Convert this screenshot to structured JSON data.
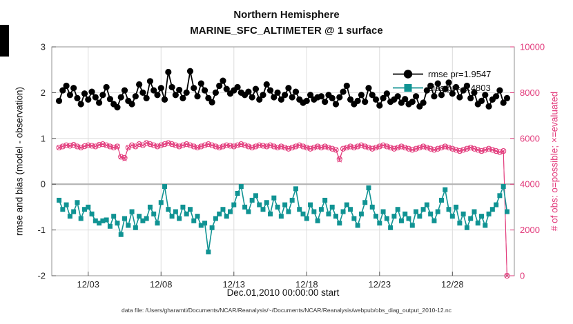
{
  "footer": {
    "data_file_note": "data file: /Users/gharamti/Documents/NCAR/Reanalysis/~/Documents/NCAR/Reanalysis/webpub/obs_diag_output_2010-12.nc"
  },
  "chart_data": {
    "type": "line",
    "title": "Northern Hemisphere",
    "subtitle": "MARINE_SFC_ALTIMETER @ 1 surface",
    "xlabel": "Dec.01,2010 00:00:00 start",
    "ylabel_left": "rmse and bias (model - observation)",
    "ylabel_right": "# of obs: o=possible; ×=evaluated",
    "xlim": [
      0.5,
      32.25
    ],
    "ylim_left": [
      -2,
      3
    ],
    "ylim_right": [
      0,
      10000
    ],
    "grid": true,
    "zero_line": 0,
    "x_tick_values": [
      3,
      8,
      13,
      18,
      23,
      28
    ],
    "x_tick_labels": [
      "12/03",
      "12/08",
      "12/13",
      "12/18",
      "12/23",
      "12/28"
    ],
    "y_ticks_left": [
      -2,
      -1,
      0,
      1,
      2,
      3
    ],
    "y_ticks_right": [
      0,
      2000,
      4000,
      6000,
      8000,
      10000
    ],
    "legend": {
      "position": "top-right",
      "entries": [
        {
          "label": "rmse pr=1.9547",
          "marker": "circle"
        },
        {
          "label": "bias pr=-0.4803",
          "marker": "square"
        }
      ]
    },
    "x": {
      "start": 1,
      "step": 0.25,
      "count": 124,
      "unit": "day of Dec 2010"
    },
    "series": [
      {
        "name": "rmse",
        "axis": "left",
        "color": "#000000",
        "marker": "circle-filled",
        "values": [
          1.82,
          2.05,
          2.15,
          1.95,
          2.1,
          1.88,
          1.75,
          1.98,
          1.85,
          2.02,
          1.9,
          1.78,
          1.95,
          2.12,
          1.86,
          1.75,
          1.68,
          1.9,
          2.05,
          1.82,
          1.75,
          1.92,
          2.18,
          2.0,
          1.88,
          2.25,
          2.05,
          1.95,
          2.1,
          1.85,
          2.45,
          2.12,
          1.95,
          2.06,
          1.88,
          2.0,
          2.47,
          2.1,
          1.92,
          2.2,
          2.05,
          1.88,
          1.79,
          2.0,
          2.15,
          2.26,
          2.08,
          1.98,
          2.05,
          2.12,
          2.0,
          1.95,
          2.02,
          1.9,
          2.08,
          1.85,
          1.95,
          2.18,
          2.05,
          1.9,
          2.0,
          1.85,
          1.95,
          2.1,
          1.9,
          2.02,
          1.85,
          1.78,
          1.82,
          1.95,
          1.85,
          1.9,
          1.92,
          1.8,
          1.95,
          1.88,
          1.75,
          1.9,
          2.02,
          2.15,
          1.85,
          1.75,
          1.82,
          1.95,
          1.8,
          2.1,
          1.95,
          1.85,
          1.72,
          1.88,
          1.98,
          1.8,
          1.85,
          1.92,
          1.78,
          1.86,
          1.75,
          1.8,
          1.92,
          1.7,
          1.78,
          2.05,
          2.15,
          1.92,
          2.2,
          1.95,
          2.08,
          2.22,
          1.98,
          2.12,
          1.9,
          2.05,
          2.15,
          1.88,
          2.0,
          1.75,
          1.82,
          1.95,
          1.7,
          1.85,
          1.92,
          2.05,
          1.78,
          1.88
        ]
      },
      {
        "name": "bias",
        "axis": "left",
        "color": "#109393",
        "marker": "square-filled",
        "values": [
          -0.35,
          -0.55,
          -0.45,
          -0.7,
          -0.6,
          -0.4,
          -0.75,
          -0.55,
          -0.5,
          -0.65,
          -0.8,
          -0.85,
          -0.8,
          -0.78,
          -0.92,
          -0.7,
          -0.85,
          -1.1,
          -0.75,
          -0.9,
          -0.6,
          -0.95,
          -0.7,
          -0.8,
          -0.75,
          -0.5,
          -0.65,
          -0.85,
          -0.4,
          -0.05,
          -0.55,
          -0.7,
          -0.6,
          -0.75,
          -0.5,
          -0.65,
          -0.55,
          -0.8,
          -0.7,
          -0.9,
          -0.85,
          -1.48,
          -0.95,
          -0.75,
          -0.65,
          -0.55,
          -0.7,
          -0.6,
          -0.45,
          -0.2,
          -0.05,
          -0.5,
          -0.6,
          -0.35,
          -0.25,
          -0.45,
          -0.55,
          -0.4,
          -0.65,
          -0.3,
          -0.5,
          -0.7,
          -0.45,
          -0.6,
          -0.35,
          -0.1,
          -0.55,
          -0.65,
          -0.75,
          -0.45,
          -0.6,
          -0.8,
          -0.55,
          -0.35,
          -0.65,
          -0.5,
          -0.7,
          -0.85,
          -0.6,
          -0.45,
          -0.55,
          -0.75,
          -0.9,
          -0.65,
          -0.4,
          -0.08,
          -0.5,
          -0.7,
          -0.85,
          -0.6,
          -0.75,
          -0.95,
          -0.7,
          -0.55,
          -0.8,
          -0.65,
          -0.75,
          -0.9,
          -0.6,
          -0.7,
          -0.55,
          -0.45,
          -0.65,
          -0.8,
          -0.6,
          -0.35,
          -0.12,
          -0.55,
          -0.7,
          -0.5,
          -0.85,
          -0.65,
          -0.95,
          -0.75,
          -0.6,
          -0.85,
          -0.7,
          -0.9,
          -0.65,
          -0.55,
          -0.45,
          -0.25,
          -0.05,
          -0.6
        ]
      },
      {
        "name": "obs_possible",
        "axis": "right",
        "color": "#e23a7b",
        "marker": "circle-open",
        "values": [
          5600,
          5650,
          5700,
          5680,
          5720,
          5650,
          5600,
          5660,
          5700,
          5680,
          5650,
          5720,
          5750,
          5700,
          5650,
          5600,
          5650,
          5200,
          5150,
          5600,
          5700,
          5650,
          5750,
          5700,
          5800,
          5750,
          5700,
          5650,
          5700,
          5750,
          5800,
          5750,
          5700,
          5650,
          5700,
          5750,
          5700,
          5650,
          5600,
          5650,
          5700,
          5750,
          5700,
          5650,
          5600,
          5650,
          5700,
          5680,
          5650,
          5700,
          5750,
          5700,
          5650,
          5600,
          5650,
          5700,
          5680,
          5650,
          5700,
          5650,
          5600,
          5650,
          5600,
          5550,
          5600,
          5650,
          5700,
          5650,
          5600,
          5550,
          5600,
          5650,
          5600,
          5650,
          5600,
          5550,
          5500,
          5100,
          5550,
          5600,
          5650,
          5600,
          5650,
          5700,
          5650,
          5600,
          5550,
          5600,
          5650,
          5700,
          5650,
          5600,
          5550,
          5600,
          5650,
          5600,
          5550,
          5500,
          5550,
          5600,
          5650,
          5600,
          5550,
          5500,
          5550,
          5600,
          5650,
          5600,
          5550,
          5500,
          5450,
          5500,
          5550,
          5600,
          5550,
          5500,
          5450,
          5500,
          5550,
          5500,
          5450,
          5400,
          5450,
          0
        ]
      },
      {
        "name": "obs_evaluated",
        "axis": "right",
        "color": "#e23a7b",
        "marker": "cross",
        "values": [
          5600,
          5650,
          5700,
          5680,
          5720,
          5650,
          5600,
          5660,
          5700,
          5680,
          5650,
          5720,
          5750,
          5700,
          5650,
          5600,
          5650,
          5180,
          5100,
          5600,
          5700,
          5650,
          5750,
          5700,
          5800,
          5750,
          5700,
          5650,
          5700,
          5750,
          5800,
          5750,
          5700,
          5650,
          5700,
          5750,
          5700,
          5650,
          5600,
          5650,
          5700,
          5750,
          5700,
          5650,
          5600,
          5650,
          5700,
          5680,
          5650,
          5700,
          5750,
          5700,
          5650,
          5600,
          5650,
          5700,
          5680,
          5650,
          5700,
          5650,
          5600,
          5650,
          5600,
          5550,
          5600,
          5650,
          5700,
          5650,
          5600,
          5550,
          5600,
          5650,
          5600,
          5650,
          5600,
          5550,
          5500,
          5050,
          5550,
          5600,
          5650,
          5600,
          5650,
          5700,
          5650,
          5600,
          5550,
          5600,
          5650,
          5700,
          5650,
          5600,
          5550,
          5600,
          5650,
          5600,
          5550,
          5500,
          5550,
          5600,
          5650,
          5600,
          5550,
          5500,
          5550,
          5600,
          5650,
          5600,
          5550,
          5500,
          5450,
          5500,
          5550,
          5600,
          5550,
          5500,
          5450,
          5500,
          5550,
          5500,
          5450,
          5400,
          5450,
          0
        ]
      }
    ],
    "style_colors": {
      "grid": "#dcdcdc",
      "axes_box": "#909090",
      "zero_line": "#b3b3b3",
      "tick_text": "#262626",
      "right_axis_text": "#e23a7b"
    }
  }
}
